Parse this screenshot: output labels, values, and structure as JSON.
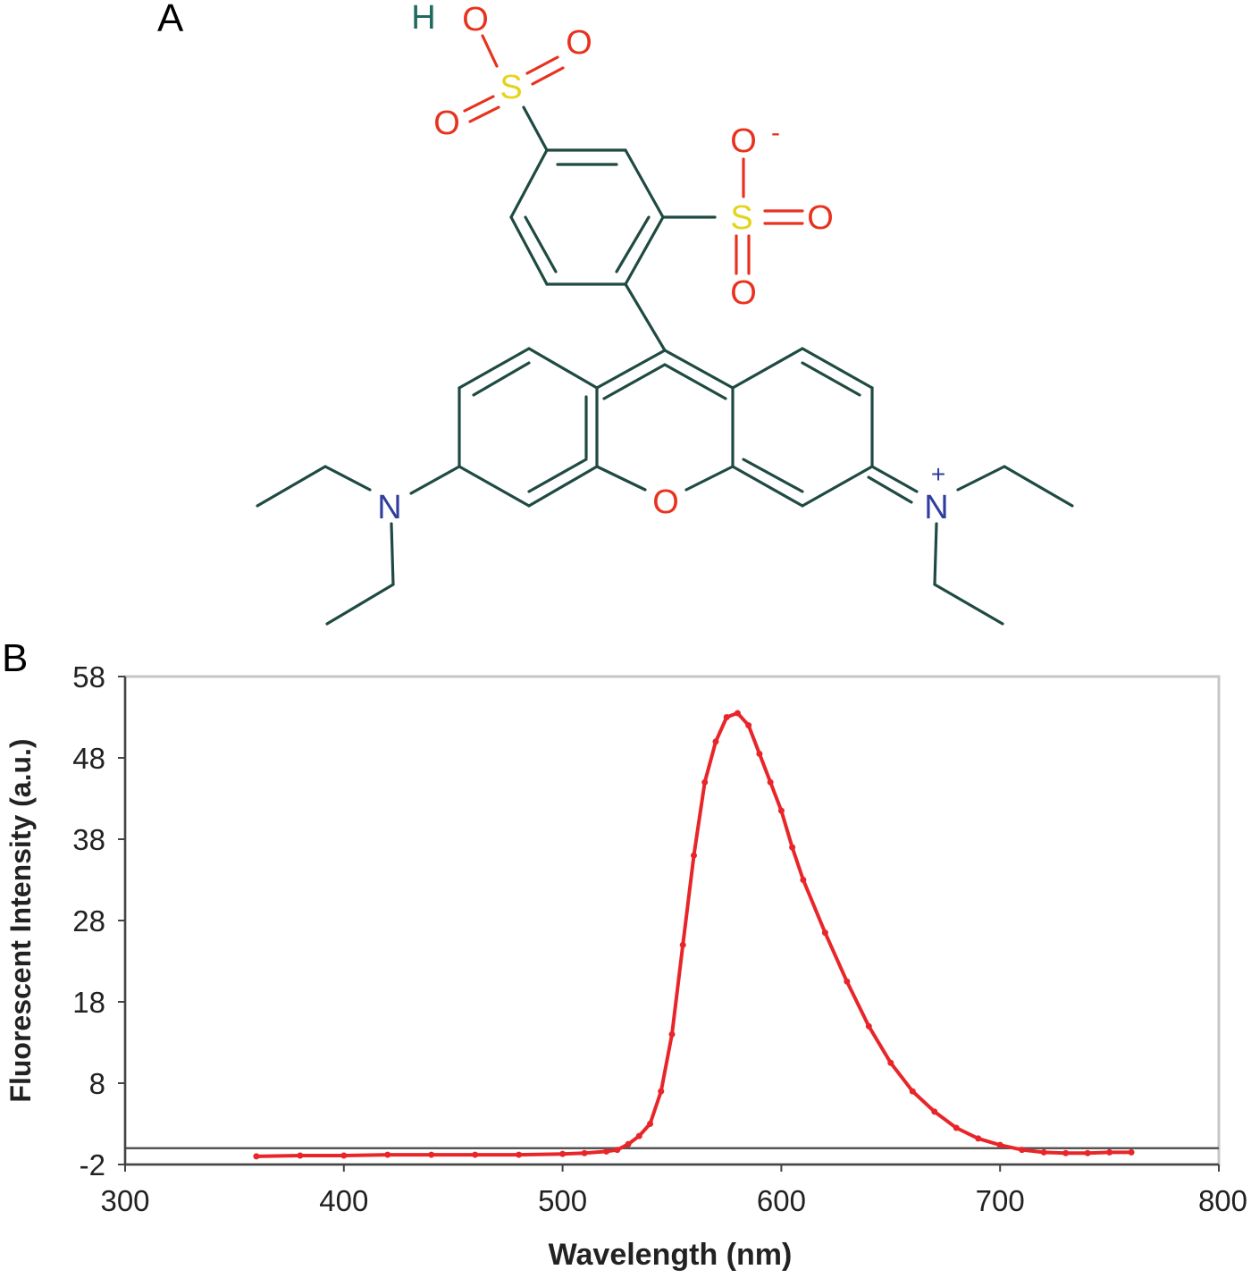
{
  "panels": {
    "a_label": "A",
    "b_label": "B"
  },
  "structure": {
    "atoms": {
      "h": "H",
      "o": "O",
      "s": "S",
      "n": "N",
      "plus": "+",
      "minus": "-"
    },
    "colors": {
      "bond": "#1f4a42",
      "oxygen": "#e8321e",
      "sulfur": "#e4d41c",
      "nitrogen": "#2f3f9e",
      "hydrogen": "#1f6a60"
    }
  },
  "chart_data": {
    "type": "line",
    "title": "",
    "xlabel": "Wavelength (nm)",
    "ylabel": "Fluorescent Intensity (a.u.)",
    "xlim": [
      300,
      800
    ],
    "ylim": [
      -2,
      58
    ],
    "xticks": [
      300,
      400,
      500,
      600,
      700,
      800
    ],
    "yticks": [
      -2,
      8,
      18,
      28,
      38,
      48,
      58
    ],
    "baseline_y": 0,
    "grid": false,
    "series_color": "#e8262a",
    "series": [
      {
        "x": [
          360,
          380,
          400,
          420,
          440,
          460,
          480,
          500,
          510,
          520,
          525,
          530,
          535,
          540,
          545,
          550,
          555,
          560,
          565,
          570,
          575,
          580,
          585,
          590,
          595,
          600,
          605,
          610,
          620,
          630,
          640,
          650,
          660,
          670,
          680,
          690,
          700,
          710,
          720,
          730,
          740,
          750,
          760
        ],
        "values": [
          -1.0,
          -0.9,
          -0.9,
          -0.8,
          -0.8,
          -0.8,
          -0.8,
          -0.7,
          -0.6,
          -0.4,
          -0.2,
          0.5,
          1.5,
          3.0,
          7.0,
          14.0,
          25.0,
          36.0,
          45.0,
          50.0,
          53.0,
          53.5,
          52.0,
          48.5,
          45.0,
          41.5,
          37.0,
          33.0,
          26.5,
          20.5,
          15.0,
          10.5,
          7.0,
          4.5,
          2.5,
          1.2,
          0.4,
          -0.2,
          -0.5,
          -0.6,
          -0.6,
          -0.5,
          -0.5
        ]
      }
    ]
  }
}
